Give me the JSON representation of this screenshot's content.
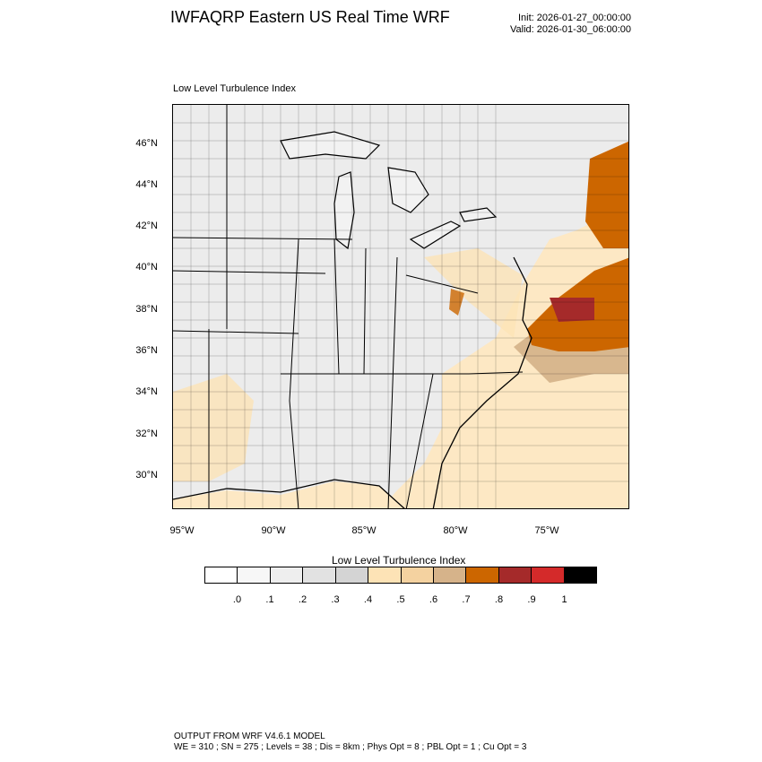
{
  "title": "IWFAQRP Eastern US Real Time WRF",
  "init": "Init: 2026-01-27_00:00:00",
  "valid": "Valid: 2026-01-30_06:00:00",
  "plot_label": "Low Level Turbulence Index",
  "lat_labels": [
    "46°N",
    "44°N",
    "42°N",
    "40°N",
    "38°N",
    "36°N",
    "34°N",
    "32°N",
    "30°N"
  ],
  "lon_labels": [
    "95°W",
    "90°W",
    "85°W",
    "80°W",
    "75°W"
  ],
  "colorbar": {
    "title": "Low Level Turbulence Index",
    "labels": [
      ".0",
      ".1",
      ".2",
      ".3",
      ".4",
      ".5",
      ".6",
      ".7",
      ".8",
      ".9",
      "1"
    ],
    "colors": [
      "#ffffff",
      "#f7f7f7",
      "#eeeeee",
      "#e2e2e2",
      "#d4d4d4",
      "#fde3b6",
      "#f4d2a0",
      "#d6b38a",
      "#cc6600",
      "#a52a2a",
      "#d42a2a",
      "#000000"
    ]
  },
  "footer": {
    "line1": "OUTPUT FROM WRF V4.6.1 MODEL",
    "line2": "WE = 310 ; SN = 275 ; Levels = 38 ; Dis = 8km ; Phys Opt = 8 ; PBL Opt = 1 ; Cu Opt = 3"
  }
}
